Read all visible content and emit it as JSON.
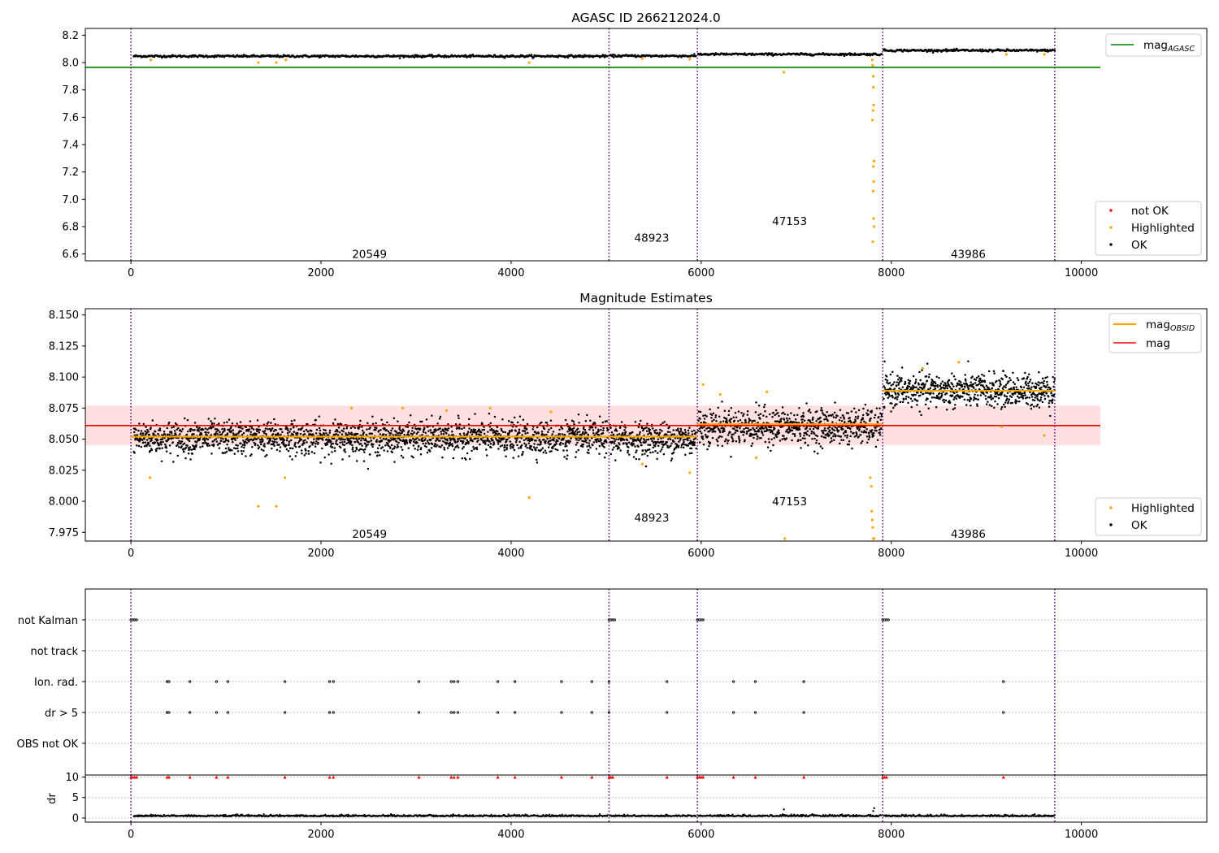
{
  "chart_data": [
    {
      "type": "scatter",
      "title": "AGASC ID 266212024.0",
      "ylim": [
        6.55,
        8.25
      ],
      "xlim": [
        -480,
        11320
      ],
      "yticks": [
        "8.2",
        "8.0",
        "7.8",
        "7.6",
        "7.4",
        "7.2",
        "7.0",
        "6.8",
        "6.6"
      ],
      "xticks": [
        "0",
        "2000",
        "4000",
        "6000",
        "8000",
        "10000"
      ],
      "reference_line": {
        "name": "mag",
        "subscript": "AGASC",
        "value": 7.965,
        "x_range": [
          -480,
          10200
        ],
        "color": "#008000"
      },
      "obs_boundaries": [
        0,
        5030,
        5960,
        7910,
        9720
      ],
      "obsid_labels": [
        {
          "text": "20549",
          "x": 2510,
          "y": 6.6
        },
        {
          "text": "48923",
          "x": 5480,
          "y": 6.72
        },
        {
          "text": "47153",
          "x": 6930,
          "y": 6.84
        },
        {
          "text": "43986",
          "x": 8810,
          "y": 6.6
        }
      ],
      "ok_segments": [
        {
          "x": [
            30,
            5020
          ],
          "y": 8.047
        },
        {
          "x": [
            5040,
            5950
          ],
          "y": 8.049
        },
        {
          "x": [
            5970,
            7900
          ],
          "y": 8.061
        },
        {
          "x": [
            7920,
            9720
          ],
          "y": 8.089
        }
      ],
      "highlighted_points": [
        {
          "x": 210,
          "y": 8.02
        },
        {
          "x": 1340,
          "y": 8.0
        },
        {
          "x": 1530,
          "y": 8.0
        },
        {
          "x": 1630,
          "y": 8.02
        },
        {
          "x": 4190,
          "y": 8.0
        },
        {
          "x": 5380,
          "y": 8.03
        },
        {
          "x": 5880,
          "y": 8.025
        },
        {
          "x": 6870,
          "y": 7.93
        },
        {
          "x": 7800,
          "y": 8.02
        },
        {
          "x": 7805,
          "y": 7.98
        },
        {
          "x": 7810,
          "y": 7.9
        },
        {
          "x": 7812,
          "y": 7.82
        },
        {
          "x": 7815,
          "y": 7.69
        },
        {
          "x": 7808,
          "y": 7.65
        },
        {
          "x": 7803,
          "y": 7.58
        },
        {
          "x": 7818,
          "y": 7.28
        },
        {
          "x": 7811,
          "y": 7.24
        },
        {
          "x": 7816,
          "y": 7.13
        },
        {
          "x": 7809,
          "y": 7.06
        },
        {
          "x": 7814,
          "y": 6.86
        },
        {
          "x": 7817,
          "y": 6.8
        },
        {
          "x": 7806,
          "y": 6.69
        },
        {
          "x": 9210,
          "y": 8.06
        },
        {
          "x": 9610,
          "y": 8.06
        }
      ],
      "legend": {
        "position": "upper-right / lower-right",
        "entries": [
          {
            "label": "not OK",
            "color": "#ff0000"
          },
          {
            "label": "Highlighted",
            "color": "#ffa500"
          },
          {
            "label": "OK",
            "color": "#000000"
          }
        ]
      }
    },
    {
      "type": "scatter",
      "title": "Magnitude Estimates",
      "ylim": [
        7.968,
        8.155
      ],
      "xlim": [
        -480,
        11320
      ],
      "yticks": [
        "8.150",
        "8.125",
        "8.100",
        "8.075",
        "8.050",
        "8.025",
        "8.000",
        "7.975"
      ],
      "xticks": [
        "0",
        "2000",
        "4000",
        "6000",
        "8000",
        "10000"
      ],
      "mag_line": {
        "name": "mag",
        "value": 8.061,
        "band": [
          8.045,
          8.077
        ],
        "x_range": [
          -480,
          10200
        ],
        "color": "#ff0000"
      },
      "obsid_mag_segments": [
        {
          "x": [
            0,
            5030
          ],
          "y": 8.052
        },
        {
          "x": [
            5030,
            5960
          ],
          "y": 8.052
        },
        {
          "x": [
            5960,
            7910
          ],
          "y": 8.062
        },
        {
          "x": [
            7910,
            9720
          ],
          "y": 8.089
        }
      ],
      "obs_boundaries": [
        0,
        5030,
        5960,
        7910,
        9720
      ],
      "obsid_labels": [
        {
          "text": "20549",
          "x": 2510,
          "y": 7.974
        },
        {
          "text": "48923",
          "x": 5480,
          "y": 7.987
        },
        {
          "text": "47153",
          "x": 6930,
          "y": 8.0
        },
        {
          "text": "43986",
          "x": 8810,
          "y": 7.974
        }
      ],
      "ok_segments": [
        {
          "x": [
            30,
            5020
          ],
          "y": 8.051,
          "spread": 0.012
        },
        {
          "x": [
            5040,
            5950
          ],
          "y": 8.05,
          "spread": 0.012
        },
        {
          "x": [
            5970,
            7900
          ],
          "y": 8.06,
          "spread": 0.013
        },
        {
          "x": [
            7920,
            9720
          ],
          "y": 8.089,
          "spread": 0.012
        }
      ],
      "highlighted_points": [
        {
          "x": 200,
          "y": 8.019
        },
        {
          "x": 1340,
          "y": 7.996
        },
        {
          "x": 1530,
          "y": 7.996
        },
        {
          "x": 1620,
          "y": 8.019
        },
        {
          "x": 2320,
          "y": 8.075
        },
        {
          "x": 2860,
          "y": 8.075
        },
        {
          "x": 3320,
          "y": 8.073
        },
        {
          "x": 3780,
          "y": 8.075
        },
        {
          "x": 4190,
          "y": 8.003
        },
        {
          "x": 4420,
          "y": 8.072
        },
        {
          "x": 5380,
          "y": 8.03
        },
        {
          "x": 5880,
          "y": 8.023
        },
        {
          "x": 6020,
          "y": 8.094
        },
        {
          "x": 6200,
          "y": 8.086
        },
        {
          "x": 6580,
          "y": 8.035
        },
        {
          "x": 6690,
          "y": 8.088
        },
        {
          "x": 6880,
          "y": 7.97
        },
        {
          "x": 7780,
          "y": 8.019
        },
        {
          "x": 7790,
          "y": 8.012
        },
        {
          "x": 7795,
          "y": 7.992
        },
        {
          "x": 7800,
          "y": 7.985
        },
        {
          "x": 7805,
          "y": 7.979
        },
        {
          "x": 7810,
          "y": 7.97
        },
        {
          "x": 7815,
          "y": 7.97
        },
        {
          "x": 7820,
          "y": 7.97
        },
        {
          "x": 8330,
          "y": 8.107
        },
        {
          "x": 8710,
          "y": 8.112
        },
        {
          "x": 9160,
          "y": 8.06
        },
        {
          "x": 9610,
          "y": 8.053
        }
      ],
      "legend_top": [
        {
          "label": "mag",
          "subscript": "OBSID",
          "color": "#ffa500"
        },
        {
          "label": "mag",
          "subscript": "",
          "color": "#ff0000"
        }
      ],
      "legend_bottom": [
        {
          "label": "Highlighted",
          "color": "#ffa500"
        },
        {
          "label": "OK",
          "color": "#000000"
        }
      ]
    },
    {
      "type": "scatter",
      "title": "",
      "xlim": [
        -480,
        11320
      ],
      "xticks": [
        "0",
        "2000",
        "4000",
        "6000",
        "8000",
        "10000"
      ],
      "flag_rows": [
        "not Kalman",
        "not track",
        "Ion. rad.",
        "dr > 5",
        "OBS not OK"
      ],
      "flags": {
        "not Kalman": [
          0,
          20,
          40,
          60,
          5030,
          5050,
          5070,
          5090,
          5960,
          5980,
          6000,
          6020,
          7910,
          7930,
          7950,
          7970
        ],
        "not track": [],
        "Ion. rad.": [
          380,
          400,
          620,
          900,
          1020,
          1620,
          2090,
          2130,
          3030,
          3370,
          3400,
          3440,
          3860,
          4040,
          4530,
          4850,
          5030,
          5640,
          6340,
          6570,
          7080,
          9180
        ],
        "dr > 5": [
          380,
          400,
          620,
          900,
          1020,
          1620,
          2090,
          2130,
          3030,
          3370,
          3400,
          3440,
          3860,
          4040,
          4530,
          4850,
          5030,
          5640,
          6340,
          6570,
          7080,
          9180
        ],
        "OBS not OK": []
      },
      "obs_boundaries": [
        0,
        5030,
        5960,
        7910,
        9720
      ]
    },
    {
      "type": "scatter",
      "ylabel": "dr",
      "ylim": [
        -1,
        10.5
      ],
      "xlim": [
        -480,
        11320
      ],
      "yticks": [
        "10",
        "5",
        "0"
      ],
      "xticks": [
        "0",
        "2000",
        "4000",
        "6000",
        "8000",
        "10000"
      ],
      "dr_baseline": 0.4,
      "dr_spikes": [
        {
          "x": 6870,
          "y": 2.1
        },
        {
          "x": 7820,
          "y": 2.4
        },
        {
          "x": 7810,
          "y": 1.7
        }
      ],
      "clipped_points_at_10": [
        0,
        20,
        40,
        60,
        380,
        400,
        620,
        900,
        1020,
        1620,
        2090,
        2130,
        3030,
        3370,
        3400,
        3440,
        3860,
        4040,
        4530,
        4850,
        5030,
        5050,
        5070,
        5640,
        5960,
        5980,
        6000,
        6020,
        6340,
        6570,
        7080,
        7910,
        7930,
        7950,
        9180
      ],
      "obs_boundaries": [
        0,
        5030,
        5960,
        7910,
        9720
      ]
    }
  ]
}
